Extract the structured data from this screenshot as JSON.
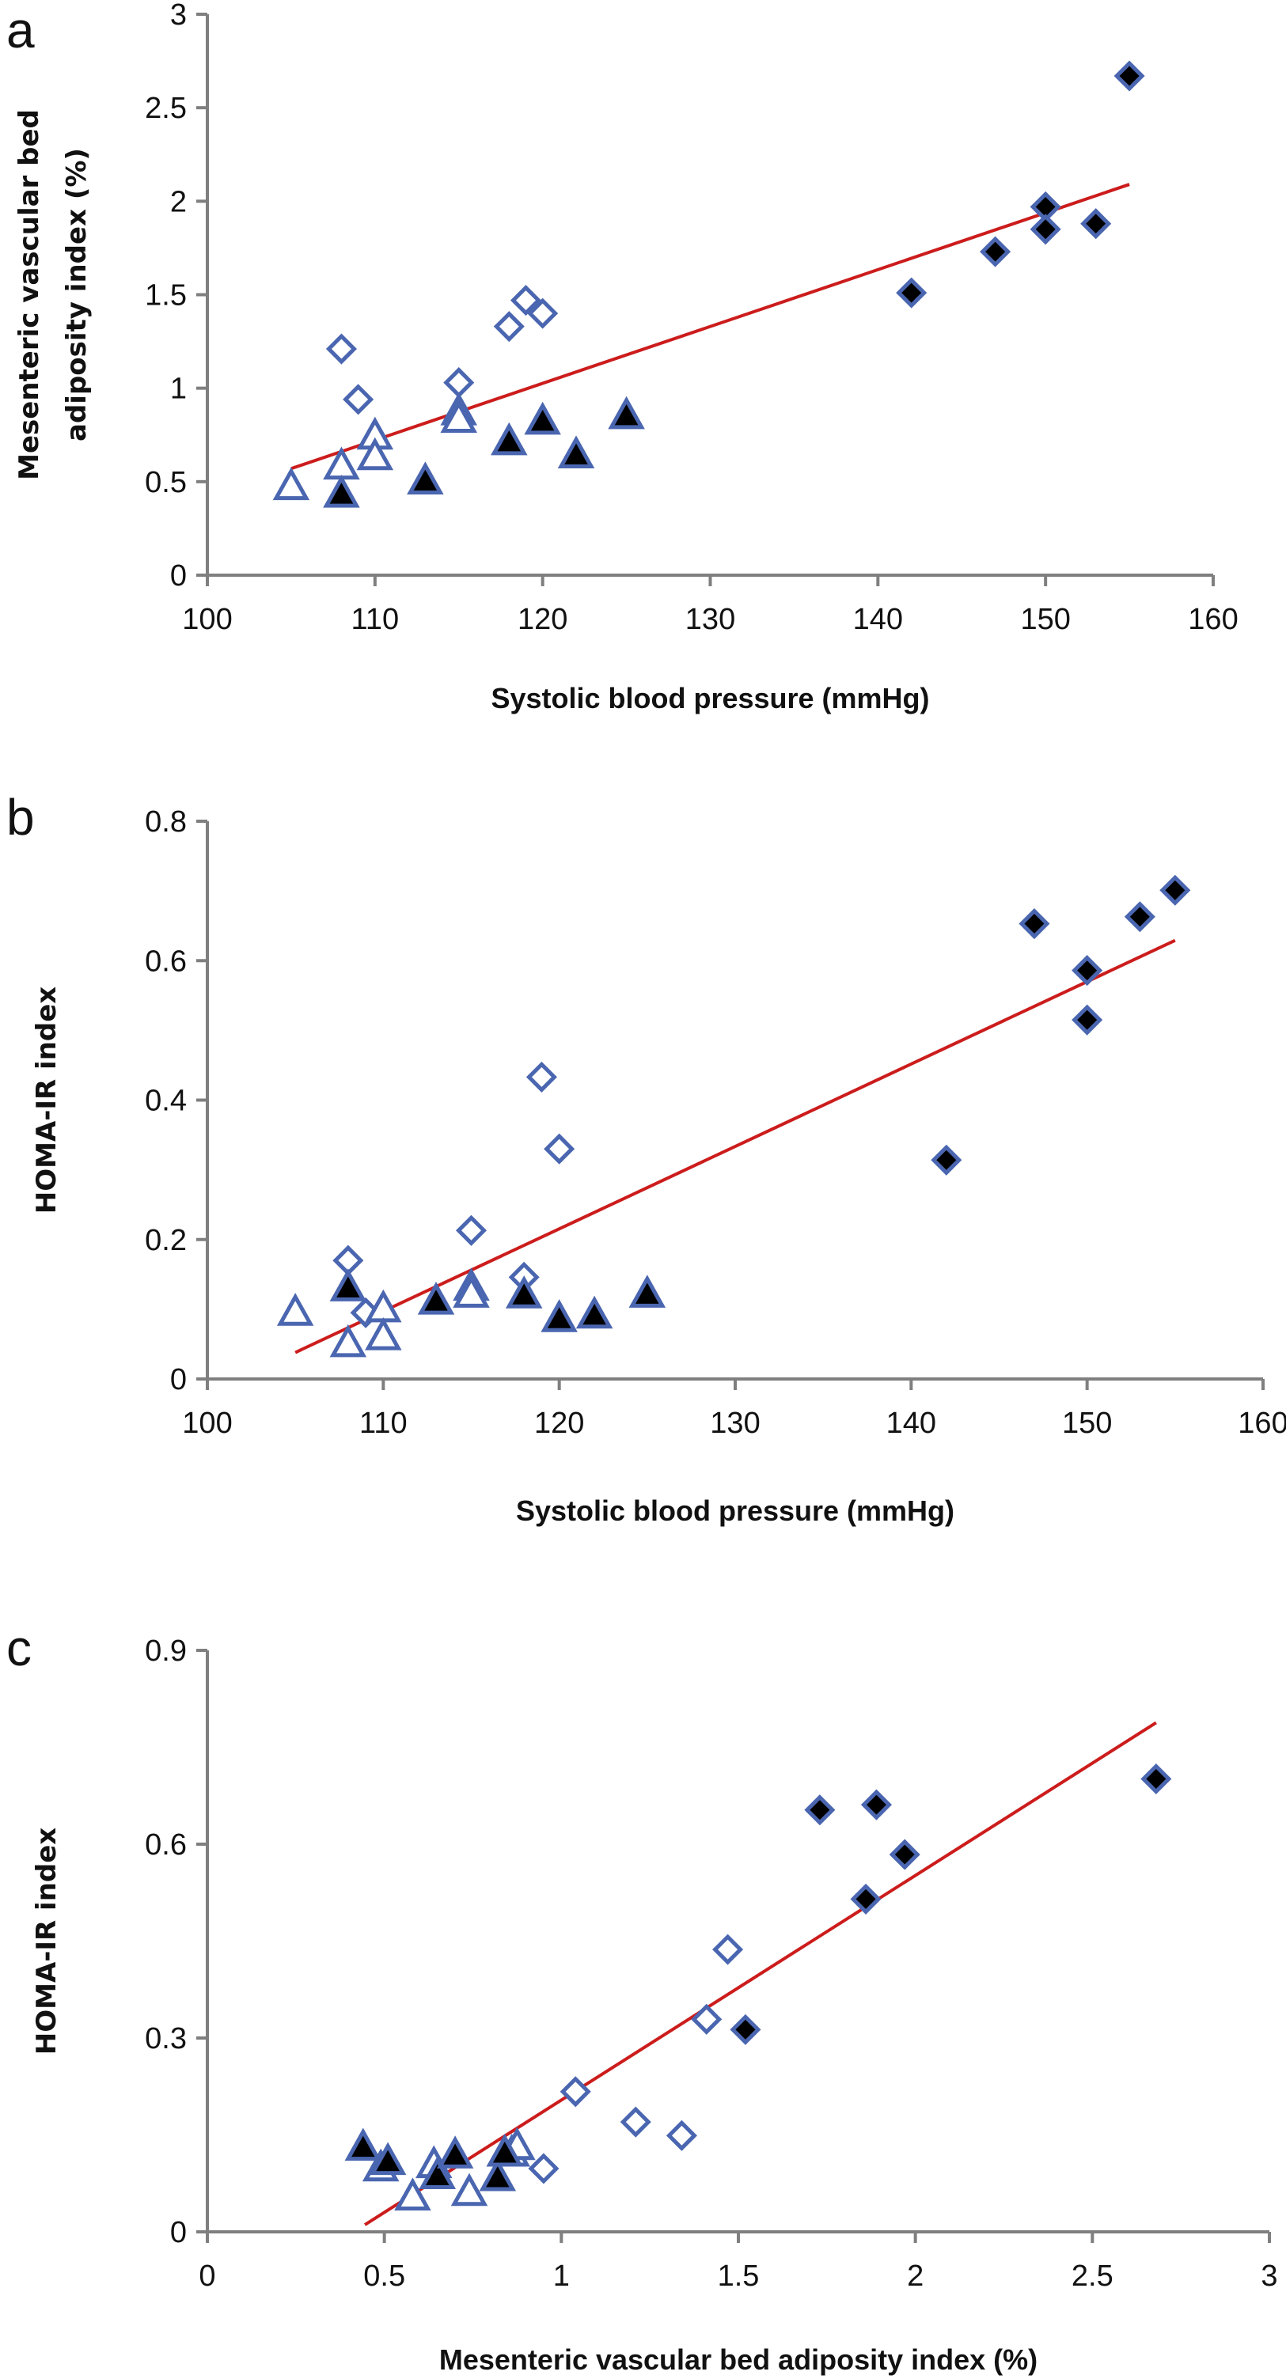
{
  "chart_data": [
    {
      "type": "scatter",
      "panel_label": "a",
      "title": "",
      "xlabel": "Systolic blood pressure (mmHg)",
      "ylabel": "Mesenteric vascular bed adiposity index (%)",
      "ylabel_lines": [
        "Mesenteric vascular bed",
        "adiposity index (%)"
      ],
      "xlim": [
        100,
        160
      ],
      "ylim": [
        0,
        3
      ],
      "xticks": [
        100,
        110,
        120,
        130,
        140,
        150,
        160
      ],
      "yticks": [
        0,
        0.5,
        1,
        1.5,
        2,
        2.5,
        3
      ],
      "xtick_labels": [
        "100",
        "110",
        "120",
        "130",
        "140",
        "150",
        "160"
      ],
      "ytick_labels": [
        "0",
        "0.5",
        "1",
        "1.5",
        "2",
        "2.5",
        "3"
      ],
      "grid": false,
      "trendline": {
        "x": [
          105,
          155
        ],
        "y": [
          0.57,
          2.09
        ]
      },
      "series": [
        {
          "name": "open-diamond",
          "marker": "diamond",
          "filled": false,
          "x": [
            108,
            109,
            115,
            118,
            119,
            120
          ],
          "y": [
            1.21,
            0.94,
            1.03,
            1.33,
            1.47,
            1.4
          ]
        },
        {
          "name": "filled-diamond",
          "marker": "diamond",
          "filled": true,
          "x": [
            142,
            147,
            150,
            150,
            153,
            155
          ],
          "y": [
            1.51,
            1.73,
            1.97,
            1.85,
            1.88,
            2.67
          ]
        },
        {
          "name": "open-triangle",
          "marker": "triangle",
          "filled": false,
          "x": [
            105,
            108,
            110,
            110,
            115,
            115
          ],
          "y": [
            0.46,
            0.57,
            0.73,
            0.62,
            0.86,
            0.82
          ]
        },
        {
          "name": "filled-triangle",
          "marker": "triangle",
          "filled": true,
          "x": [
            108,
            113,
            118,
            120,
            122,
            125
          ],
          "y": [
            0.42,
            0.49,
            0.7,
            0.81,
            0.63,
            0.84
          ]
        }
      ]
    },
    {
      "type": "scatter",
      "panel_label": "b",
      "title": "",
      "xlabel": "Systolic blood pressure (mmHg)",
      "ylabel": "HOMA-IR index",
      "ylabel_lines": [
        "HOMA-IR index"
      ],
      "xlim": [
        100,
        160
      ],
      "ylim": [
        0,
        0.8
      ],
      "xticks": [
        100,
        110,
        120,
        130,
        140,
        150,
        160
      ],
      "yticks": [
        0,
        0.2,
        0.4,
        0.6,
        0.8
      ],
      "xtick_labels": [
        "100",
        "110",
        "120",
        "130",
        "140",
        "150",
        "160"
      ],
      "ytick_labels": [
        "0",
        "0.2",
        "0.4",
        "0.6",
        "0.8"
      ],
      "grid": false,
      "trendline": {
        "x": [
          105,
          155
        ],
        "y": [
          0.038,
          0.629
        ]
      },
      "series": [
        {
          "name": "open-diamond",
          "marker": "diamond",
          "filled": false,
          "x": [
            108,
            109,
            115,
            118,
            119,
            120
          ],
          "y": [
            0.17,
            0.095,
            0.213,
            0.146,
            0.433,
            0.33
          ]
        },
        {
          "name": "filled-diamond",
          "marker": "diamond",
          "filled": true,
          "x": [
            142,
            147,
            150,
            150,
            153,
            155
          ],
          "y": [
            0.314,
            0.653,
            0.586,
            0.515,
            0.663,
            0.701
          ]
        },
        {
          "name": "open-triangle",
          "marker": "triangle",
          "filled": false,
          "x": [
            105,
            108,
            110,
            110,
            115,
            115
          ],
          "y": [
            0.092,
            0.047,
            0.097,
            0.057,
            0.128,
            0.118
          ]
        },
        {
          "name": "filled-triangle",
          "marker": "triangle",
          "filled": true,
          "x": [
            108,
            113,
            118,
            120,
            122,
            125
          ],
          "y": [
            0.127,
            0.108,
            0.117,
            0.083,
            0.088,
            0.118
          ]
        }
      ]
    },
    {
      "type": "scatter",
      "panel_label": "c",
      "title": "",
      "xlabel": "Mesenteric vascular bed adiposity index (%)",
      "ylabel": "HOMA-IR index",
      "ylabel_lines": [
        "HOMA-IR index"
      ],
      "xlim": [
        0,
        3
      ],
      "ylim": [
        0,
        0.9
      ],
      "xticks": [
        0,
        0.5,
        1,
        1.5,
        2,
        2.5,
        3
      ],
      "yticks": [
        0,
        0.3,
        0.6,
        0.9
      ],
      "xtick_labels": [
        "0",
        "0.5",
        "1",
        "1.5",
        "2",
        "2.5",
        "3"
      ],
      "ytick_labels": [
        "0",
        "0.3",
        "0.6",
        "0.9"
      ],
      "grid": false,
      "trendline": {
        "x": [
          0.445,
          2.68
        ],
        "y": [
          0.011,
          0.788
        ]
      },
      "series": [
        {
          "name": "open-diamond",
          "marker": "diamond",
          "filled": false,
          "x": [
            1.21,
            0.95,
            1.04,
            1.34,
            1.47,
            1.41
          ],
          "y": [
            0.17,
            0.098,
            0.217,
            0.149,
            0.437,
            0.329
          ]
        },
        {
          "name": "filled-diamond",
          "marker": "diamond",
          "filled": true,
          "x": [
            1.52,
            1.73,
            1.97,
            1.86,
            1.89,
            2.68
          ],
          "y": [
            0.313,
            0.653,
            0.584,
            0.515,
            0.661,
            0.701
          ]
        },
        {
          "name": "open-triangle",
          "marker": "triangle",
          "filled": false,
          "x": [
            0.49,
            0.58,
            0.74,
            0.64,
            0.86,
            0.875
          ],
          "y": [
            0.095,
            0.05,
            0.057,
            0.1,
            0.118,
            0.128
          ]
        },
        {
          "name": "filled-triangle",
          "marker": "triangle",
          "filled": true,
          "x": [
            0.44,
            0.51,
            0.65,
            0.7,
            0.82,
            0.84
          ],
          "y": [
            0.127,
            0.105,
            0.083,
            0.115,
            0.08,
            0.118
          ]
        }
      ]
    }
  ]
}
